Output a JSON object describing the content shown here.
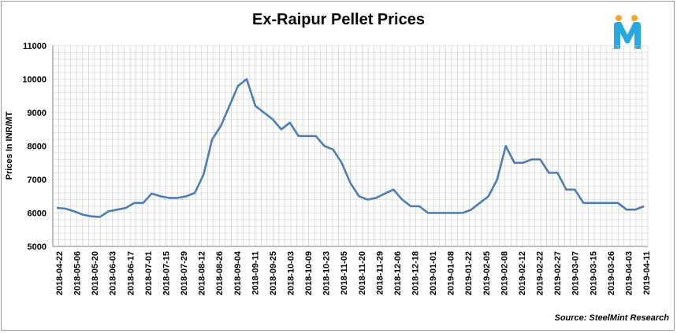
{
  "chart_data": {
    "type": "line",
    "title": "Ex-Raipur Pellet Prices",
    "ylabel": "Prices In INR/MT",
    "xlabel": "",
    "source": "Source: SteelMint Research",
    "ylim": [
      5000,
      11000
    ],
    "yticks": [
      5000,
      6000,
      7000,
      8000,
      9000,
      10000,
      11000
    ],
    "grid": true,
    "line_color": "#4a7ebb",
    "x_tick_labels": [
      "2018-04-22",
      "2018-05-06",
      "2018-05-20",
      "2018-06-03",
      "2018-06-17",
      "2018-07-01",
      "2018-07-15",
      "2018-07-29",
      "2018-08-12",
      "2018-08-26",
      "2018-09-04",
      "2018-09-11",
      "2018-09-25",
      "2018-10-03",
      "2018-10-09",
      "2018-10-23",
      "2018-11-05",
      "2018-11-20",
      "2018-11-29",
      "2018-12-06",
      "2018-12-18",
      "2019-01-01",
      "2019-01-08",
      "2019-01-22",
      "2019-02-05",
      "2019-02-08",
      "2019-02-12",
      "2019-02-22",
      "2019-02-27",
      "2019-03-07",
      "2019-03-15",
      "2019-03-26",
      "2019-04-03",
      "2019-04-11"
    ],
    "series": [
      {
        "values": [
          6150,
          6130,
          6050,
          5950,
          5900,
          5880,
          6050,
          6100,
          6150,
          6300,
          6300,
          6580,
          6500,
          6450,
          6450,
          6500,
          6600,
          7150,
          8200,
          8600,
          9200,
          9800,
          10000,
          9200,
          9000,
          8800,
          8500,
          8700,
          8300,
          8300,
          8300,
          8000,
          7900,
          7500,
          6900,
          6500,
          6400,
          6450,
          6580,
          6700,
          6400,
          6200,
          6200,
          6000,
          6000,
          6000,
          6000,
          6000,
          6100,
          6300,
          6500,
          7000,
          8000,
          7500,
          7500,
          7600,
          7600,
          7200,
          7200,
          6700,
          6700,
          6300,
          6300,
          6300,
          6300,
          6300,
          6100,
          6100,
          6200
        ]
      }
    ]
  }
}
